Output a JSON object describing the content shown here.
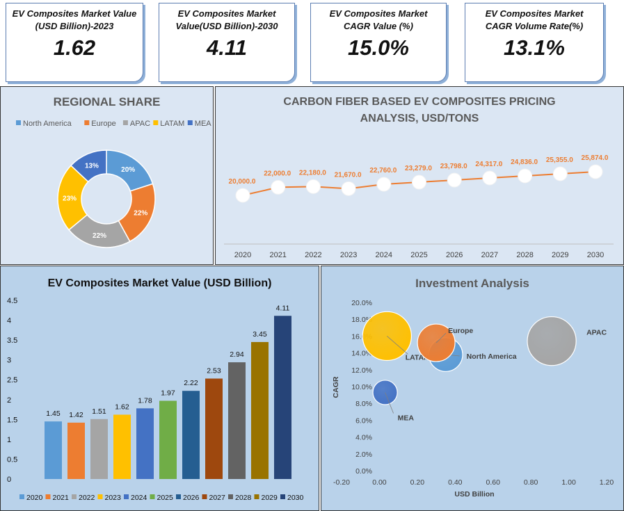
{
  "kpis": [
    {
      "label": "EV Composites Market Value (USD Billion)-2023",
      "value": "1.62"
    },
    {
      "label": "EV Composites Market Value(USD Billion)-2030",
      "value": "4.11"
    },
    {
      "label": "EV Composites Market CAGR Value (%)",
      "value": "15.0%"
    },
    {
      "label": "EV Composites Market CAGR Volume Rate(%)",
      "value": "13.1%"
    }
  ],
  "colors": {
    "north_america": "#5b9bd5",
    "europe": "#ed7d31",
    "apac": "#a5a5a5",
    "latam": "#ffc000",
    "mea": "#4472c4",
    "y2025": "#70ad47",
    "y2026": "#255e91",
    "y2027": "#9e480e",
    "y2028": "#636363",
    "y2029": "#997300",
    "y2030": "#264478"
  },
  "chart_data": [
    {
      "type": "pie",
      "title": "REGIONAL SHARE",
      "legend_position": "top",
      "categories": [
        "North America",
        "Europe",
        "APAC",
        "LATAM",
        "MEA"
      ],
      "values": [
        20,
        22,
        22,
        23,
        13
      ],
      "labels": [
        "20%",
        "22%",
        "22%",
        "23%",
        "13%"
      ]
    },
    {
      "type": "line",
      "title": "CARBON FIBER BASED EV COMPOSITES PRICING ANALYSIS, USD/TONS",
      "x": [
        "2020",
        "2021",
        "2022",
        "2023",
        "2024",
        "2025",
        "2026",
        "2027",
        "2028",
        "2029",
        "2030"
      ],
      "values": [
        20000,
        22000,
        22180,
        21670,
        22760,
        23279,
        23798,
        24317,
        24836,
        25355,
        25874
      ],
      "labels": [
        "20,000.0",
        "22,000.0",
        "22,180.0",
        "21,670.0",
        "22,760.0",
        "23,279.0",
        "23,798.0",
        "24,317.0",
        "24,836.0",
        "25,355.0",
        "25,874.0"
      ]
    },
    {
      "type": "bar",
      "title": "EV Composites Market Value (USD Billion)",
      "categories": [
        "2020",
        "2021",
        "2022",
        "2023",
        "2024",
        "2025",
        "2026",
        "2027",
        "2028",
        "2029",
        "2030"
      ],
      "values": [
        1.45,
        1.42,
        1.51,
        1.62,
        1.78,
        1.97,
        2.22,
        2.53,
        2.94,
        3.45,
        4.11
      ],
      "labels": [
        "1.45",
        "1.42",
        "1.51",
        "1.62",
        "1.78",
        "1.97",
        "2.22",
        "2.53",
        "2.94",
        "3.45",
        "4.11"
      ],
      "ylim": [
        0,
        4.5
      ],
      "yticks": [
        "0",
        "0.5",
        "1",
        "1.5",
        "2",
        "2.5",
        "3",
        "3.5",
        "4",
        "4.5"
      ],
      "legend_position": "bottom"
    },
    {
      "type": "scatter",
      "title": "Investment Analysis",
      "xlabel": "USD Billion",
      "ylabel": "CAGR",
      "xlim": [
        -0.2,
        1.2
      ],
      "ylim": [
        0,
        0.2
      ],
      "xticks": [
        "-0.20",
        "0.00",
        "0.20",
        "0.40",
        "0.60",
        "0.80",
        "1.00",
        "1.20"
      ],
      "yticks": [
        "0.0%",
        "2.0%",
        "4.0%",
        "6.0%",
        "8.0%",
        "10.0%",
        "12.0%",
        "14.0%",
        "16.0%",
        "18.0%",
        "20.0%"
      ],
      "points": [
        {
          "name": "LATAM",
          "x": 0.04,
          "y": 0.16,
          "bubble": 1.3
        },
        {
          "name": "North America",
          "x": 0.35,
          "y": 0.138,
          "bubble": 0.9
        },
        {
          "name": "Europe",
          "x": 0.3,
          "y": 0.152,
          "bubble": 1.0
        },
        {
          "name": "APAC",
          "x": 0.91,
          "y": 0.154,
          "bubble": 1.3
        },
        {
          "name": "MEA",
          "x": 0.03,
          "y": 0.093,
          "bubble": 0.65
        }
      ]
    }
  ]
}
